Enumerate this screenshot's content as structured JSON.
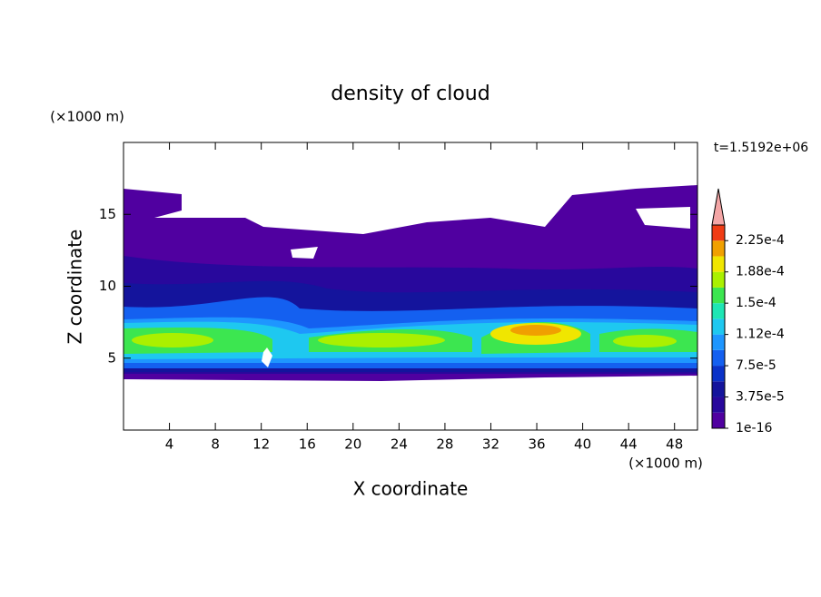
{
  "chart_data": {
    "type": "contour",
    "title": "density of cloud",
    "time_label": "t=1.5192e+06",
    "x_label": "X coordinate",
    "y_label": "Z coordinate",
    "x_unit": "(×1000 m)",
    "y_unit": "(×1000 m)",
    "xlim": [
      0,
      50
    ],
    "ylim": [
      0,
      20
    ],
    "xticks": [
      4,
      8,
      12,
      16,
      20,
      24,
      28,
      32,
      36,
      40,
      44,
      48
    ],
    "yticks": [
      5,
      10,
      15
    ],
    "colorbar": {
      "lim": [
        1e-16,
        0.00024375
      ],
      "ticks": [
        1e-16,
        {
          "value": 3.75e-05,
          "label": "3.75e-5"
        },
        {
          "value": 7.5e-05,
          "label": "7.5e-5"
        },
        {
          "value": 0.0001125,
          "label": "1.12e-4"
        },
        {
          "value": 0.00015,
          "label": "1.5e-4"
        },
        {
          "value": 0.0001875,
          "label": "1.88e-4"
        },
        {
          "value": 0.000225,
          "label": "2.25e-4"
        }
      ],
      "colors": [
        "#5000a0",
        "#28089c",
        "#14149c",
        "#0a32c8",
        "#1460f0",
        "#1e96ff",
        "#1ec8f0",
        "#1ee6b4",
        "#3ce650",
        "#aaf000",
        "#f0e600",
        "#f0a000",
        "#f03c14"
      ],
      "extend_color": "#f4a6a6"
    }
  }
}
